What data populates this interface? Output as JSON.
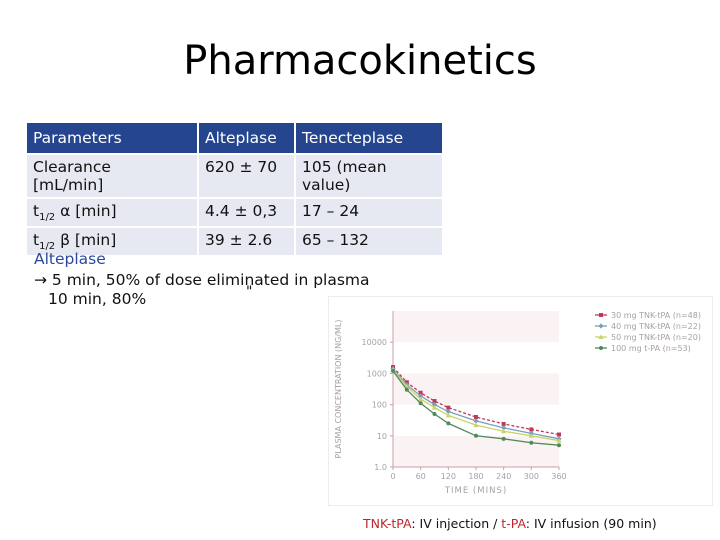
{
  "slide": {
    "title": "Pharmacokinetics"
  },
  "table": {
    "headers": [
      "Parameters",
      "Alteplase",
      "Tenecteplase"
    ],
    "rows": [
      {
        "param_main": "Clearance",
        "param_line2": "[mL/min]",
        "alteplase": "620 ± 70",
        "tenecteplase_1": "105 (mean",
        "tenecteplase_2": "value)"
      },
      {
        "param_t": "t",
        "param_sub": "1/2",
        "param_rest": " α [min]",
        "alteplase": "4.4 ± 0,3",
        "tenecteplase": "17 – 24"
      },
      {
        "param_t": "t",
        "param_sub": "1/2",
        "param_rest": " β [min]",
        "alteplase": "39 ± 2.6",
        "tenecteplase": "65 – 132"
      }
    ]
  },
  "notes": {
    "heading": "Alteplase",
    "line1": "→  5 min, 50% of dose eliminated in plasma",
    "line2": "10 min, 80%",
    "ditto": "\""
  },
  "caption": {
    "tnk": "TNK-tPA",
    "tnk_desc": ": IV injection / ",
    "tpa": "t-PA",
    "tpa_desc": ": IV infusion (90 min)"
  },
  "chart_data": {
    "type": "line",
    "ylabel": "PLASMA CONCENTRATION (NG/ML)",
    "xlabel": "TIME (MINS)",
    "y_scale": "log",
    "ylim": [
      1,
      100000
    ],
    "xlim": [
      0,
      360
    ],
    "x_ticks": [
      "0",
      "60",
      "120",
      "180",
      "240",
      "300",
      "360"
    ],
    "y_ticks": [
      "10000",
      "1000",
      "100",
      "10",
      "1.0"
    ],
    "legend_position": "top-right",
    "series": [
      {
        "name": "30 mg TNK-tPA (n=48)",
        "color": "#c0395a",
        "marker": "square",
        "x": [
          0,
          30,
          60,
          90,
          120,
          180,
          240,
          300,
          360
        ],
        "y": [
          1600,
          520,
          240,
          130,
          80,
          40,
          24,
          16,
          11
        ]
      },
      {
        "name": "40 mg TNK-tPA (n=22)",
        "color": "#7a9fba",
        "marker": "diamond",
        "x": [
          0,
          30,
          60,
          90,
          120,
          180,
          240,
          300,
          360
        ],
        "y": [
          1400,
          430,
          190,
          100,
          60,
          30,
          18,
          12,
          8
        ]
      },
      {
        "name": "50 mg TNK-tPA (n=20)",
        "color": "#c8d46a",
        "marker": "triangle",
        "x": [
          0,
          30,
          60,
          90,
          120,
          180,
          240,
          300,
          360
        ],
        "y": [
          1300,
          380,
          150,
          80,
          45,
          22,
          14,
          10,
          7
        ]
      },
      {
        "name": "100 mg t-PA (n=53)",
        "color": "#4f8a5b",
        "marker": "circle",
        "x": [
          0,
          30,
          60,
          90,
          120,
          180,
          240,
          300,
          360
        ],
        "y": [
          1200,
          300,
          110,
          50,
          25,
          10,
          8,
          6,
          5
        ]
      }
    ]
  }
}
